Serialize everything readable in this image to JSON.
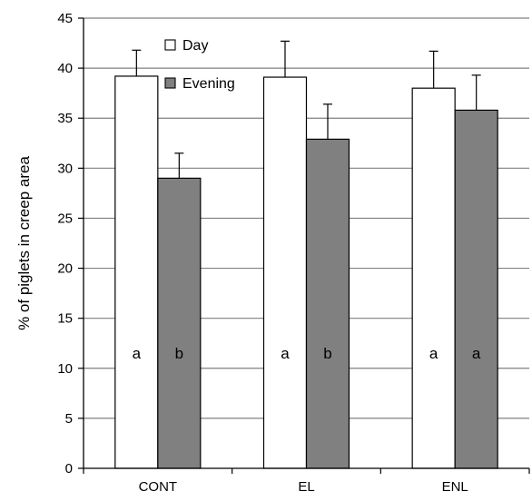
{
  "chart_data": {
    "type": "bar",
    "categories": [
      "CONT",
      "EL",
      "ENL"
    ],
    "series": [
      {
        "name": "Day",
        "values": [
          39.2,
          39.1,
          38.0
        ],
        "errors": [
          2.6,
          3.6,
          3.7
        ],
        "letters": [
          "a",
          "a",
          "a"
        ],
        "color": "#ffffff"
      },
      {
        "name": "Evening",
        "values": [
          29.0,
          32.9,
          35.8
        ],
        "errors": [
          2.5,
          3.5,
          3.5
        ],
        "letters": [
          "b",
          "b",
          "a"
        ],
        "color": "#808080"
      }
    ],
    "ylabel": "% of piglets in creep area",
    "xlabel": "",
    "ylim": [
      0,
      45
    ],
    "yticks": [
      0,
      5,
      10,
      15,
      20,
      25,
      30,
      35,
      40,
      45
    ],
    "letter_y": 11.5,
    "grid": true,
    "legend": "top-left",
    "gridline_color": "#808080"
  }
}
